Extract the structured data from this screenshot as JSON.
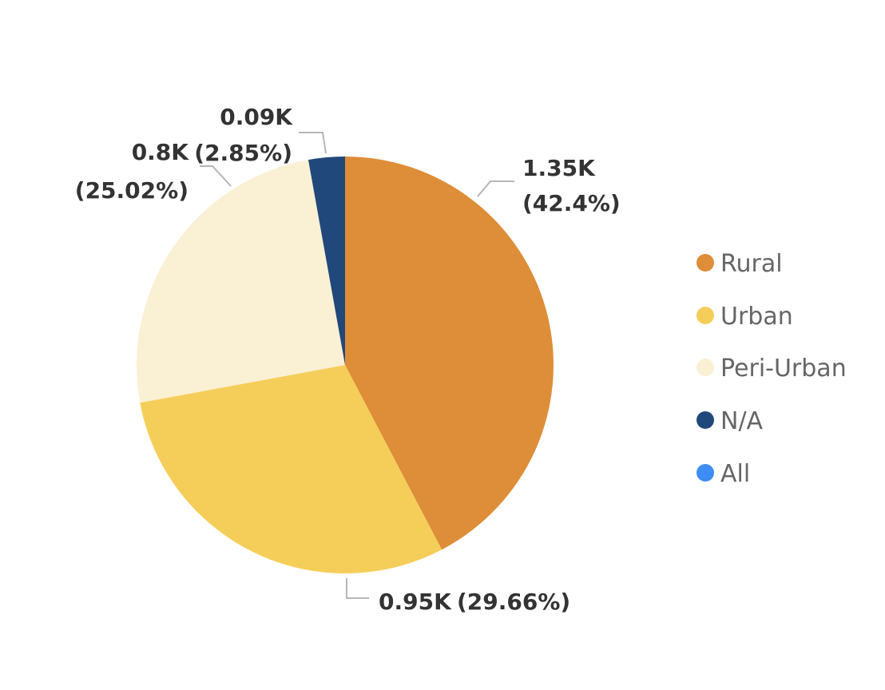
{
  "chart_data": {
    "type": "pie",
    "categories": [
      "Rural",
      "Urban",
      "Peri-Urban",
      "N/A"
    ],
    "values": [
      1.35,
      0.95,
      0.8,
      0.09
    ],
    "percentages": [
      42.4,
      29.66,
      25.02,
      2.85
    ],
    "value_labels": [
      "1.35K",
      "0.95K",
      "0.8K",
      "0.09K"
    ],
    "percent_labels": [
      "(42.4%)",
      "(29.66%)",
      "(25.02%)",
      "(2.85%)"
    ],
    "colors": [
      "#DE8D38",
      "#F5CE5A",
      "#FAF0D4",
      "#21487A"
    ],
    "start_angle": "12 o'clock",
    "direction": "clockwise",
    "legend": {
      "position": "right",
      "entries": [
        {
          "label": "Rural",
          "color": "#DE8D38"
        },
        {
          "label": "Urban",
          "color": "#F5CE5A"
        },
        {
          "label": "Peri-Urban",
          "color": "#FAF0D4"
        },
        {
          "label": "N/A",
          "color": "#21487A"
        },
        {
          "label": "All",
          "color": "#3E8DF5"
        }
      ]
    }
  }
}
